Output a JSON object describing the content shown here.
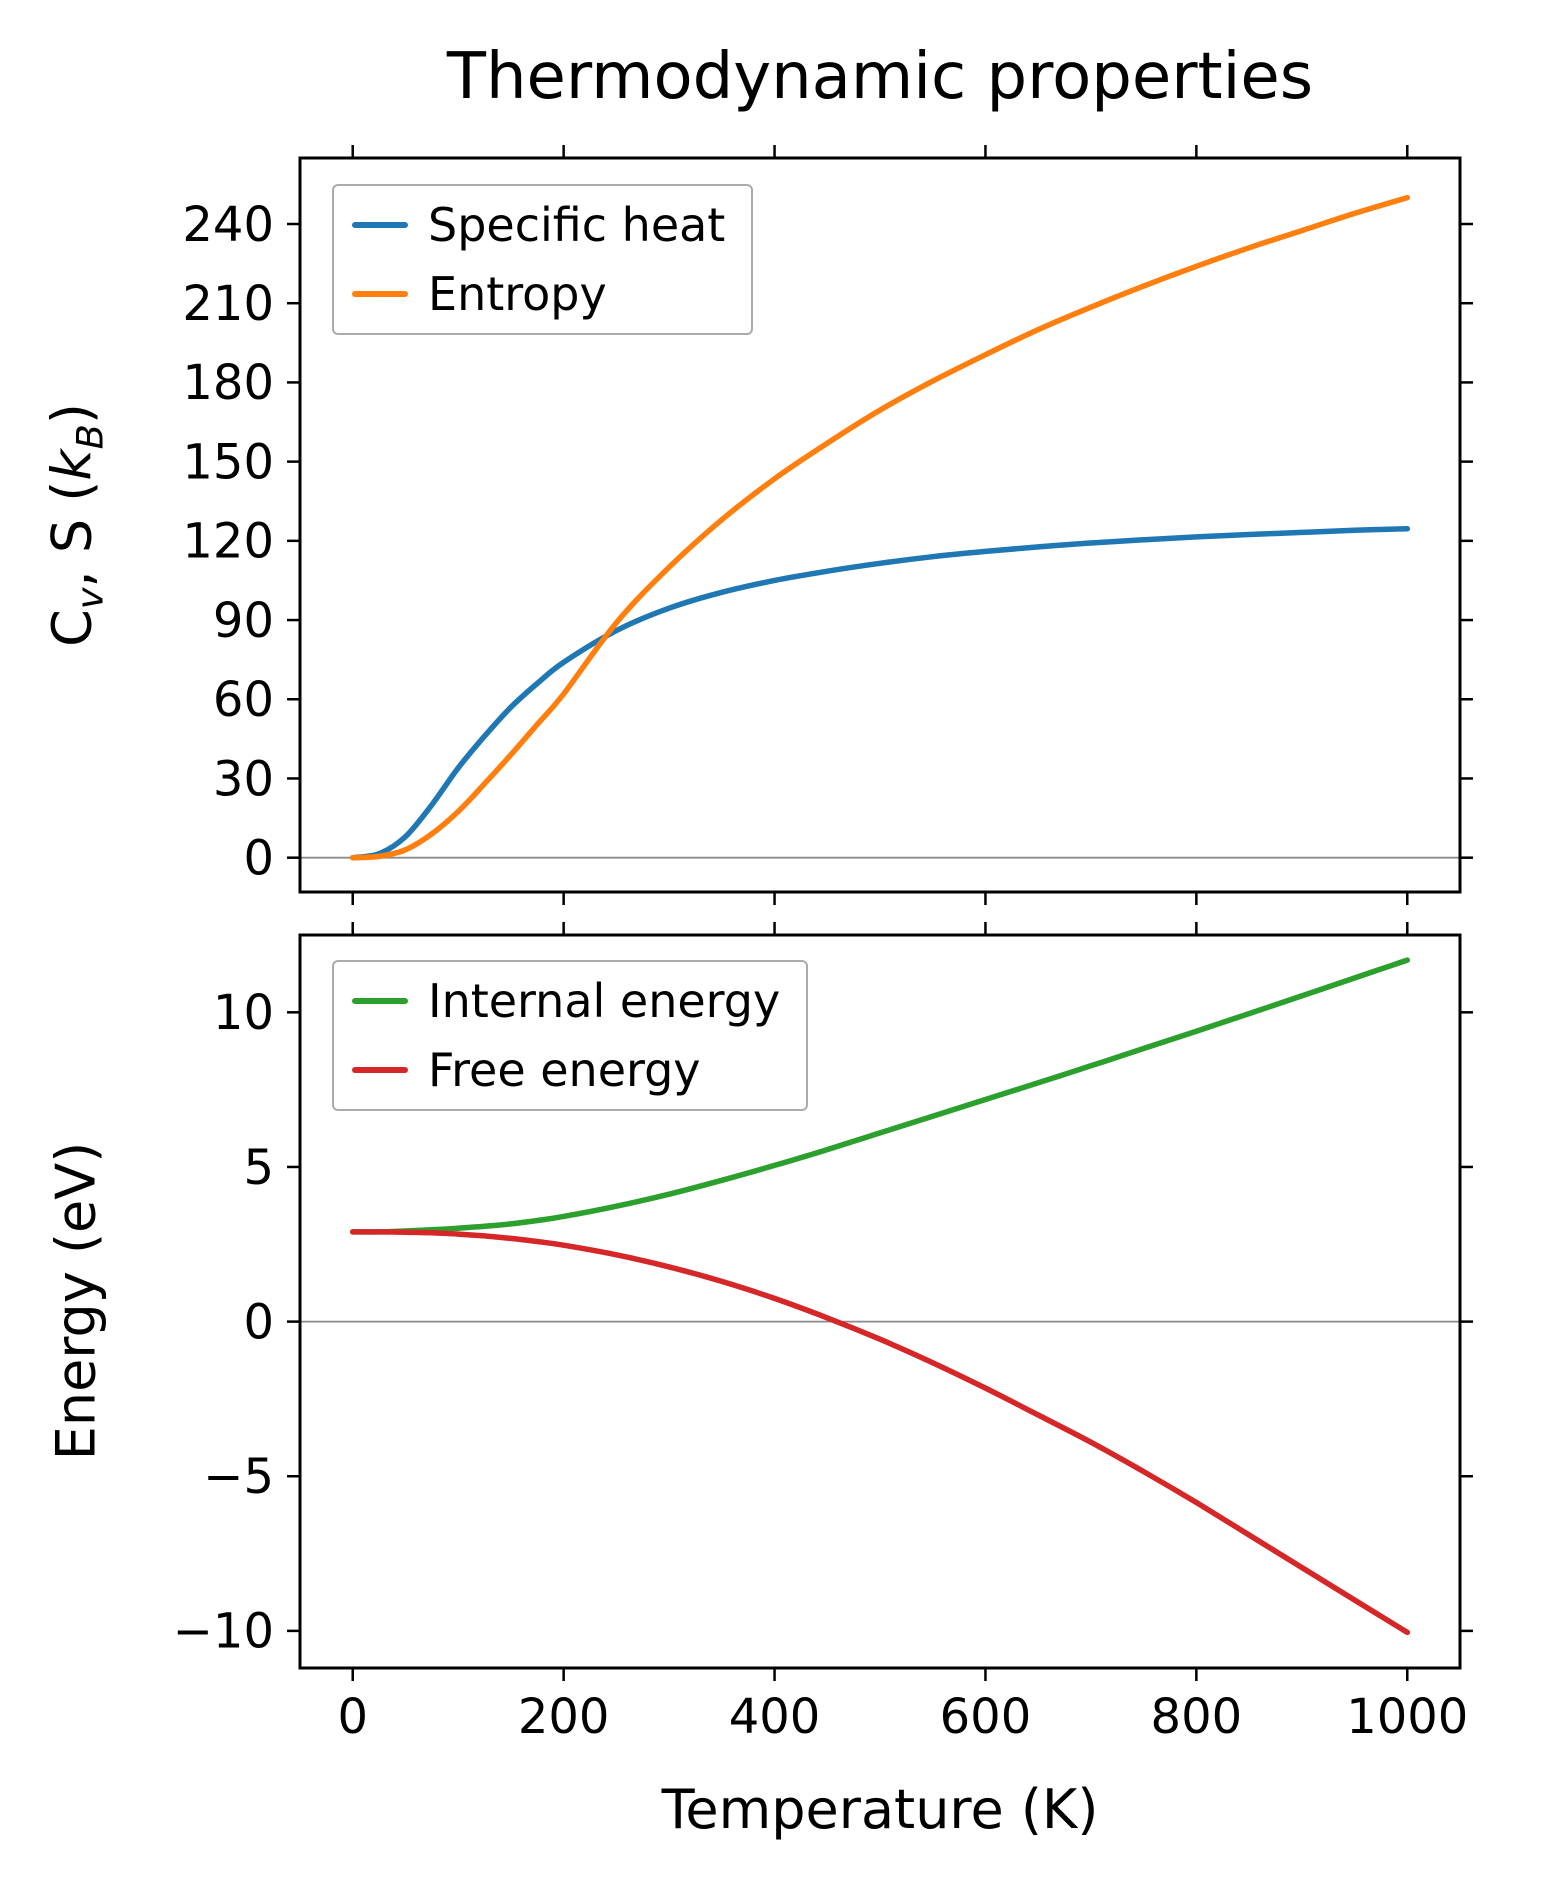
{
  "labels": {
    "title": "Thermodynamic properties",
    "xlabel": "Temperature (K)",
    "ylabel_bottom": "Energy (eV)",
    "ylabel_top": {
      "p1": "C",
      "s1": "v",
      "p2": ", S (",
      "p3": "k",
      "s2": "B",
      "p4": ")"
    }
  },
  "style": {
    "axis_color": "#000000",
    "zero_line_color": "#8a8a8a",
    "legend_border_color": "#ababab",
    "background": "#ffffff"
  },
  "chart_data": [
    {
      "type": "line",
      "title": "Thermodynamic properties",
      "xlabel": "",
      "ylabel": "Cv, S (kB)",
      "xlim": [
        -50,
        1050
      ],
      "ylim": [
        -13,
        265
      ],
      "xticks": [
        0,
        200,
        400,
        600,
        800,
        1000
      ],
      "yticks": [
        0,
        30,
        60,
        90,
        120,
        150,
        180,
        210,
        240
      ],
      "grid": false,
      "zero_line": true,
      "legend_position": "upper left",
      "x": [
        0,
        25,
        50,
        75,
        100,
        125,
        150,
        175,
        200,
        250,
        300,
        350,
        400,
        450,
        500,
        550,
        600,
        650,
        700,
        750,
        800,
        850,
        900,
        950,
        1000
      ],
      "series": [
        {
          "name": "Specific heat",
          "color": "#1f77b4",
          "values": [
            0,
            1.5,
            8,
            20,
            34,
            46,
            57,
            66,
            74,
            86,
            94.5,
            100.5,
            105,
            108.5,
            111.5,
            114,
            116,
            117.7,
            119.2,
            120.4,
            121.5,
            122.4,
            123.2,
            124,
            124.6
          ]
        },
        {
          "name": "Entropy",
          "color": "#ff7f0e",
          "values": [
            0,
            0.5,
            3,
            9,
            17.5,
            28,
            39,
            50.5,
            62,
            89,
            110,
            128,
            143.5,
            157,
            169.5,
            180.5,
            190.5,
            200,
            208.5,
            216.5,
            224,
            231,
            237.5,
            244,
            250
          ]
        }
      ]
    },
    {
      "type": "line",
      "title": "",
      "xlabel": "Temperature (K)",
      "ylabel": "Energy (eV)",
      "xlim": [
        -50,
        1050
      ],
      "ylim": [
        -11.2,
        12.5
      ],
      "xticks": [
        0,
        200,
        400,
        600,
        800,
        1000
      ],
      "yticks": [
        -10,
        -5,
        0,
        5,
        10
      ],
      "grid": false,
      "zero_line": true,
      "legend_position": "upper left",
      "x": [
        0,
        25,
        50,
        75,
        100,
        125,
        150,
        175,
        200,
        250,
        300,
        350,
        400,
        450,
        500,
        550,
        600,
        650,
        700,
        750,
        800,
        850,
        900,
        950,
        1000
      ],
      "series": [
        {
          "name": "Internal energy",
          "color": "#2ca02c",
          "values": [
            2.9,
            2.9,
            2.93,
            2.97,
            3.02,
            3.08,
            3.16,
            3.27,
            3.4,
            3.73,
            4.12,
            4.57,
            5.05,
            5.56,
            6.1,
            6.64,
            7.18,
            7.72,
            8.27,
            8.83,
            9.39,
            9.96,
            10.53,
            11.11,
            11.69
          ]
        },
        {
          "name": "Free energy",
          "color": "#d62728",
          "values": [
            2.9,
            2.9,
            2.89,
            2.87,
            2.83,
            2.77,
            2.69,
            2.59,
            2.47,
            2.16,
            1.77,
            1.3,
            0.75,
            0.12,
            -0.57,
            -1.33,
            -2.15,
            -3.02,
            -3.9,
            -4.85,
            -5.85,
            -6.9,
            -7.95,
            -9.0,
            -10.05
          ]
        }
      ]
    }
  ]
}
